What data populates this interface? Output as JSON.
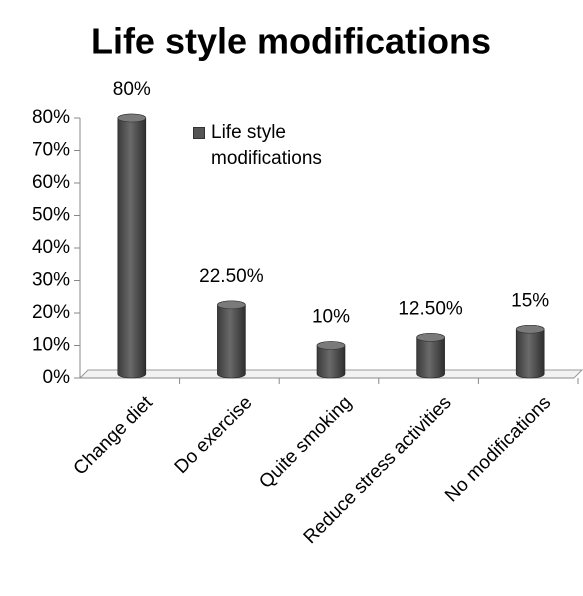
{
  "chart_data": {
    "type": "bar",
    "title": "Life style modifications",
    "categories": [
      "Change diet",
      "Do exercise",
      "Quite smoking",
      "Reduce stress activities",
      "No modifications"
    ],
    "series": [
      {
        "name": "Life style modifications",
        "color": "#555555",
        "values": [
          80,
          22.5,
          10,
          12.5,
          15
        ],
        "value_labels": [
          "80%",
          "22.50%",
          "10%",
          "12.50%",
          "15%"
        ]
      }
    ],
    "ylim": [
      0,
      80
    ],
    "yticks": [
      {
        "value": 0,
        "label": "0%"
      },
      {
        "value": 10,
        "label": "10%"
      },
      {
        "value": 20,
        "label": "20%"
      },
      {
        "value": 30,
        "label": "30%"
      },
      {
        "value": 40,
        "label": "40%"
      },
      {
        "value": 50,
        "label": "50%"
      },
      {
        "value": 60,
        "label": "60%"
      },
      {
        "value": 70,
        "label": "70%"
      },
      {
        "value": 80,
        "label": "80%"
      }
    ],
    "grid": false
  }
}
